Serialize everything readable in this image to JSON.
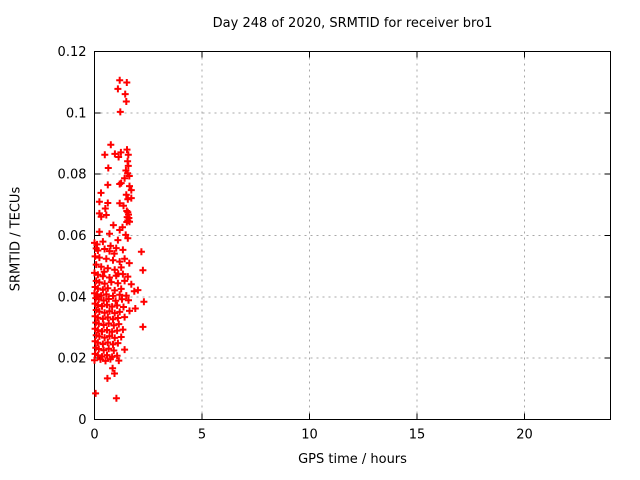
{
  "window": {
    "background": "#ffffff"
  },
  "colors": {
    "marker": "#ff0000",
    "grid": "#a8a8a8",
    "axis": "#000000",
    "text": "#000000",
    "background": "#ffffff"
  },
  "chart_data": {
    "type": "scatter",
    "title": "Day 248 of 2020, SRMTID for receiver bro1",
    "xlabel": "GPS time / hours",
    "ylabel": "SRMTID / TECUs",
    "xlim": [
      0,
      24
    ],
    "ylim": [
      0,
      0.12
    ],
    "x_ticks": [
      0,
      5,
      10,
      15,
      20
    ],
    "x_tick_labels": [
      "0",
      "5",
      "10",
      "15",
      "20"
    ],
    "y_ticks": [
      0,
      0.02,
      0.04,
      0.06,
      0.08,
      0.1,
      0.12
    ],
    "y_tick_labels": [
      "0",
      "0.02",
      "0.04",
      "0.06",
      "0.08",
      "0.1",
      "0.12"
    ],
    "grid": true,
    "legend": "none",
    "marker": "plus",
    "series": [
      {
        "name": "SRMTID",
        "color": "#ff0000",
        "points": [
          [
            1.17,
            0.1106
          ],
          [
            1.5,
            0.1099
          ],
          [
            1.09,
            0.1078
          ],
          [
            1.43,
            0.1061
          ],
          [
            1.48,
            0.1037
          ],
          [
            1.2,
            0.1003
          ],
          [
            0.76,
            0.0896
          ],
          [
            1.51,
            0.088
          ],
          [
            1.23,
            0.0871
          ],
          [
            0.95,
            0.0866
          ],
          [
            0.48,
            0.0863
          ],
          [
            1.57,
            0.0863
          ],
          [
            1.12,
            0.0856
          ],
          [
            1.54,
            0.0842
          ],
          [
            1.57,
            0.0827
          ],
          [
            0.64,
            0.082
          ],
          [
            1.46,
            0.0812
          ],
          [
            1.54,
            0.0803
          ],
          [
            1.62,
            0.0794
          ],
          [
            1.4,
            0.0787
          ],
          [
            1.24,
            0.0771
          ],
          [
            1.17,
            0.0768
          ],
          [
            0.62,
            0.0765
          ],
          [
            1.63,
            0.0761
          ],
          [
            1.71,
            0.0748
          ],
          [
            0.3,
            0.0739
          ],
          [
            1.48,
            0.0733
          ],
          [
            1.71,
            0.0722
          ],
          [
            1.55,
            0.0718
          ],
          [
            0.23,
            0.071
          ],
          [
            1.17,
            0.0705
          ],
          [
            0.62,
            0.0706
          ],
          [
            1.35,
            0.0697
          ],
          [
            0.5,
            0.0688
          ],
          [
            1.5,
            0.068
          ],
          [
            1.55,
            0.0676
          ],
          [
            0.23,
            0.0672
          ],
          [
            1.58,
            0.0668
          ],
          [
            0.31,
            0.0661
          ],
          [
            0.55,
            0.0667
          ],
          [
            1.52,
            0.066
          ],
          [
            1.6,
            0.0657
          ],
          [
            1.55,
            0.0649
          ],
          [
            1.5,
            0.0644
          ],
          [
            1.63,
            0.0645
          ],
          [
            0.88,
            0.0634
          ],
          [
            1.3,
            0.0627
          ],
          [
            1.17,
            0.0618
          ],
          [
            0.23,
            0.0612
          ],
          [
            0.7,
            0.0606
          ],
          [
            1.45,
            0.0602
          ],
          [
            1.55,
            0.0591
          ],
          [
            1.09,
            0.0585
          ],
          [
            0.39,
            0.058
          ],
          [
            0.0,
            0.0576
          ],
          [
            0.12,
            0.0571
          ],
          [
            0.75,
            0.0566
          ],
          [
            0.08,
            0.0558
          ],
          [
            1.01,
            0.0559
          ],
          [
            0.47,
            0.0556
          ],
          [
            0.16,
            0.0551
          ],
          [
            1.32,
            0.0553
          ],
          [
            0.7,
            0.0549
          ],
          [
            2.18,
            0.0547
          ],
          [
            0.92,
            0.0541
          ],
          [
            0.03,
            0.0532
          ],
          [
            0.23,
            0.0528
          ],
          [
            0.55,
            0.0524
          ],
          [
            1.4,
            0.0524
          ],
          [
            0.86,
            0.0519
          ],
          [
            1.17,
            0.0515
          ],
          [
            1.62,
            0.051
          ],
          [
            0.08,
            0.0505
          ],
          [
            0.31,
            0.0498
          ],
          [
            1.24,
            0.0496
          ],
          [
            0.62,
            0.0493
          ],
          [
            0.94,
            0.0488
          ],
          [
            2.25,
            0.0487
          ],
          [
            0.45,
            0.0482
          ],
          [
            0.0,
            0.0478
          ],
          [
            1.1,
            0.0475
          ],
          [
            1.32,
            0.0474
          ],
          [
            0.16,
            0.0472
          ],
          [
            0.7,
            0.0463
          ],
          [
            1.55,
            0.0466
          ],
          [
            1.01,
            0.0469
          ],
          [
            0.39,
            0.0467
          ],
          [
            0.08,
            0.0452
          ],
          [
            1.4,
            0.0452
          ],
          [
            0.78,
            0.0448
          ],
          [
            0.23,
            0.0447
          ],
          [
            1.09,
            0.0444
          ],
          [
            0.47,
            0.0443
          ],
          [
            1.71,
            0.0441
          ],
          [
            0.03,
            0.0432
          ],
          [
            0.62,
            0.0428
          ],
          [
            0.16,
            0.0427
          ],
          [
            1.24,
            0.0426
          ],
          [
            0.39,
            0.0423
          ],
          [
            2.02,
            0.0422
          ],
          [
            0.94,
            0.0421
          ],
          [
            1.85,
            0.0418
          ],
          [
            0.0,
            0.0412
          ],
          [
            0.55,
            0.0408
          ],
          [
            0.12,
            0.0408
          ],
          [
            1.17,
            0.0407
          ],
          [
            0.31,
            0.0404
          ],
          [
            1.48,
            0.0404
          ],
          [
            0.86,
            0.0403
          ],
          [
            0.06,
            0.0396
          ],
          [
            0.66,
            0.0393
          ],
          [
            1.28,
            0.0392
          ],
          [
            0.2,
            0.0392
          ],
          [
            1.58,
            0.0389
          ],
          [
            0.98,
            0.0387
          ],
          [
            0.43,
            0.0388
          ],
          [
            2.3,
            0.0384
          ],
          [
            0.03,
            0.0378
          ],
          [
            0.58,
            0.0374
          ],
          [
            1.05,
            0.0372
          ],
          [
            0.16,
            0.0373
          ],
          [
            0.35,
            0.0369
          ],
          [
            0.82,
            0.0368
          ],
          [
            1.35,
            0.0367
          ],
          [
            1.9,
            0.0362
          ],
          [
            0.08,
            0.0357
          ],
          [
            1.63,
            0.0354
          ],
          [
            0.7,
            0.0353
          ],
          [
            0.23,
            0.0352
          ],
          [
            1.17,
            0.0351
          ],
          [
            0.47,
            0.0348
          ],
          [
            0.94,
            0.0347
          ],
          [
            0.03,
            0.0337
          ],
          [
            1.4,
            0.0334
          ],
          [
            0.62,
            0.0333
          ],
          [
            0.16,
            0.0332
          ],
          [
            1.09,
            0.0331
          ],
          [
            0.39,
            0.0328
          ],
          [
            0.86,
            0.0327
          ],
          [
            0.06,
            0.0316
          ],
          [
            0.66,
            0.0313
          ],
          [
            0.2,
            0.0312
          ],
          [
            1.13,
            0.0311
          ],
          [
            0.43,
            0.0308
          ],
          [
            0.9,
            0.0307
          ],
          [
            2.25,
            0.0302
          ],
          [
            0.03,
            0.0296
          ],
          [
            1.32,
            0.0293
          ],
          [
            0.58,
            0.0292
          ],
          [
            0.16,
            0.0291
          ],
          [
            1.05,
            0.029
          ],
          [
            0.35,
            0.0287
          ],
          [
            0.82,
            0.0286
          ],
          [
            0.08,
            0.0275
          ],
          [
            0.7,
            0.0272
          ],
          [
            0.23,
            0.0271
          ],
          [
            1.24,
            0.0269
          ],
          [
            0.47,
            0.0267
          ],
          [
            0.94,
            0.0266
          ],
          [
            0.03,
            0.0255
          ],
          [
            0.62,
            0.0251
          ],
          [
            1.09,
            0.0249
          ],
          [
            0.16,
            0.025
          ],
          [
            0.39,
            0.0246
          ],
          [
            0.86,
            0.0245
          ],
          [
            0.06,
            0.0234
          ],
          [
            0.66,
            0.0231
          ],
          [
            0.2,
            0.023
          ],
          [
            1.4,
            0.0228
          ],
          [
            0.43,
            0.0226
          ],
          [
            0.9,
            0.0225
          ],
          [
            0.03,
            0.0214
          ],
          [
            0.58,
            0.021
          ],
          [
            1.05,
            0.0208
          ],
          [
            0.16,
            0.0209
          ],
          [
            0.35,
            0.0205
          ],
          [
            0.82,
            0.0204
          ],
          [
            0.74,
            0.0197
          ],
          [
            0.28,
            0.0196
          ],
          [
            0.0,
            0.0193
          ],
          [
            1.13,
            0.0192
          ],
          [
            0.51,
            0.0191
          ],
          [
            0.84,
            0.0167
          ],
          [
            0.93,
            0.015
          ],
          [
            0.6,
            0.0134
          ],
          [
            0.05,
            0.0085
          ],
          [
            1.02,
            0.0069
          ]
        ]
      }
    ]
  }
}
